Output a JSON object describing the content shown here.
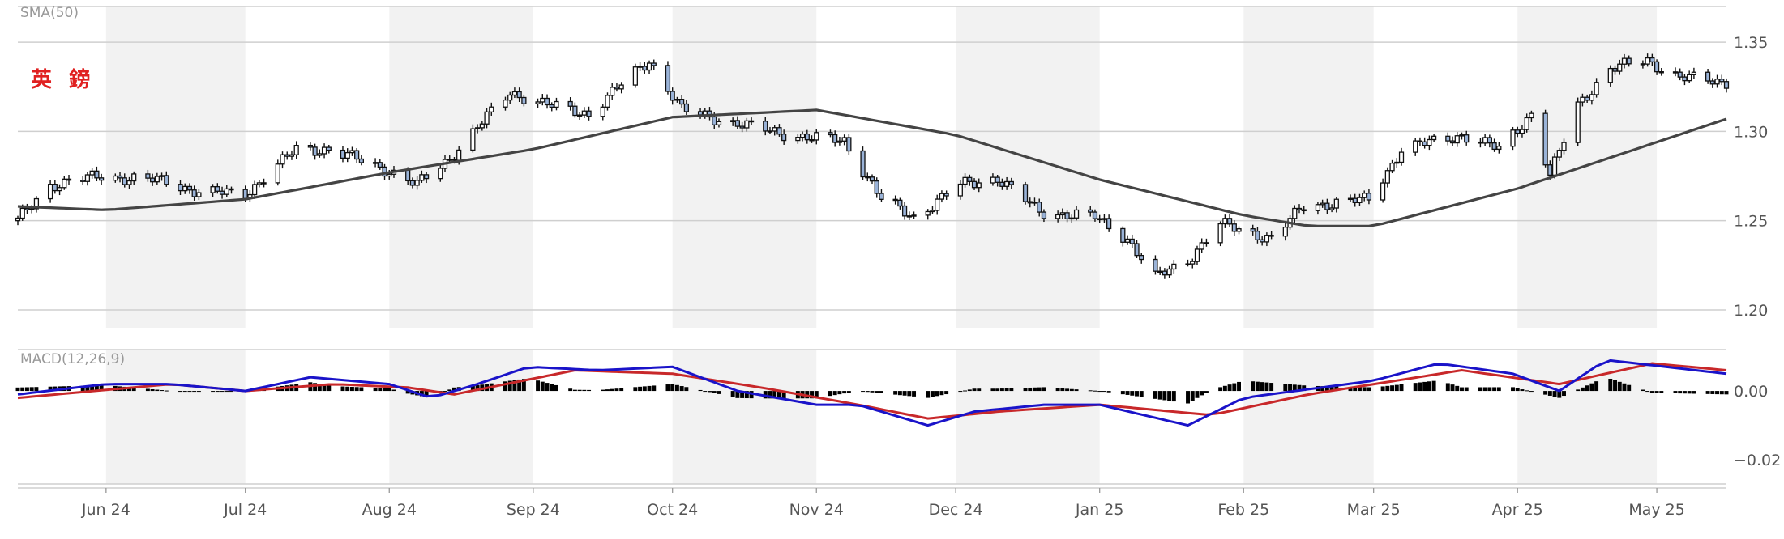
{
  "chart_data": [
    {
      "type": "candlestick",
      "title": "英 鎊",
      "indicator_label": "SMA(50)",
      "yticks": [
        "1.35",
        "1.30",
        "1.25",
        "1.20"
      ],
      "ylim": [
        1.19,
        1.37
      ],
      "xticks": [
        "Jun 24",
        "Jul 24",
        "Aug 24",
        "Sep 24",
        "Oct 24",
        "Nov 24",
        "Dec 24",
        "Jan 25",
        "Feb 25",
        "Mar 25",
        "Apr 25",
        "May 25"
      ],
      "x_range": [
        "2024-05-13",
        "2025-05-16"
      ],
      "close_anchors": [
        [
          "2024-05-13",
          1.25
        ],
        [
          "2024-05-20",
          1.27
        ],
        [
          "2024-05-31",
          1.275
        ],
        [
          "2024-06-14",
          1.272
        ],
        [
          "2024-06-21",
          1.266
        ],
        [
          "2024-07-01",
          1.265
        ],
        [
          "2024-07-12",
          1.29
        ],
        [
          "2024-07-19",
          1.29
        ],
        [
          "2024-08-01",
          1.278
        ],
        [
          "2024-08-07",
          1.27
        ],
        [
          "2024-08-14",
          1.285
        ],
        [
          "2024-08-21",
          1.305
        ],
        [
          "2024-08-27",
          1.322
        ],
        [
          "2024-09-05",
          1.314
        ],
        [
          "2024-09-13",
          1.31
        ],
        [
          "2024-09-26",
          1.34
        ],
        [
          "2024-10-03",
          1.312
        ],
        [
          "2024-10-17",
          1.303
        ],
        [
          "2024-10-31",
          1.296
        ],
        [
          "2024-11-07",
          1.295
        ],
        [
          "2024-11-15",
          1.262
        ],
        [
          "2024-11-22",
          1.252
        ],
        [
          "2024-12-02",
          1.27
        ],
        [
          "2024-12-10",
          1.274
        ],
        [
          "2024-12-19",
          1.255
        ],
        [
          "2024-12-31",
          1.252
        ],
        [
          "2025-01-07",
          1.24
        ],
        [
          "2025-01-13",
          1.218
        ],
        [
          "2025-01-20",
          1.228
        ],
        [
          "2025-01-27",
          1.248
        ],
        [
          "2025-02-07",
          1.24
        ],
        [
          "2025-02-14",
          1.258
        ],
        [
          "2025-02-28",
          1.262
        ],
        [
          "2025-03-07",
          1.29
        ],
        [
          "2025-03-20",
          1.298
        ],
        [
          "2025-03-28",
          1.29
        ],
        [
          "2025-04-04",
          1.31
        ],
        [
          "2025-04-08",
          1.275
        ],
        [
          "2025-04-14",
          1.315
        ],
        [
          "2025-04-21",
          1.335
        ],
        [
          "2025-04-29",
          1.34
        ],
        [
          "2025-05-06",
          1.33
        ],
        [
          "2025-05-16",
          1.328
        ]
      ],
      "sma50_anchors": [
        [
          "2024-05-13",
          1.258
        ],
        [
          "2024-06-01",
          1.256
        ],
        [
          "2024-07-01",
          1.262
        ],
        [
          "2024-08-01",
          1.277
        ],
        [
          "2024-09-01",
          1.29
        ],
        [
          "2024-10-01",
          1.308
        ],
        [
          "2024-11-01",
          1.312
        ],
        [
          "2024-12-01",
          1.298
        ],
        [
          "2025-01-01",
          1.273
        ],
        [
          "2025-02-01",
          1.253
        ],
        [
          "2025-02-15",
          1.247
        ],
        [
          "2025-03-01",
          1.247
        ],
        [
          "2025-04-01",
          1.268
        ],
        [
          "2025-05-16",
          1.307
        ]
      ]
    },
    {
      "type": "macd",
      "indicator_label": "MACD(12,26,9)",
      "yticks": [
        "0.00",
        "−0.02"
      ],
      "ylim": [
        -0.027,
        0.012
      ],
      "macd_anchors": [
        [
          "2024-05-13",
          -0.001
        ],
        [
          "2024-06-01",
          0.002
        ],
        [
          "2024-06-15",
          0.002
        ],
        [
          "2024-07-01",
          0.0
        ],
        [
          "2024-07-15",
          0.004
        ],
        [
          "2024-08-01",
          0.002
        ],
        [
          "2024-08-10",
          -0.002
        ],
        [
          "2024-08-20",
          0.002
        ],
        [
          "2024-08-31",
          0.007
        ],
        [
          "2024-09-15",
          0.006
        ],
        [
          "2024-10-01",
          0.007
        ],
        [
          "2024-10-15",
          0.0
        ],
        [
          "2024-11-01",
          -0.004
        ],
        [
          "2024-11-10",
          -0.004
        ],
        [
          "2024-11-25",
          -0.01
        ],
        [
          "2024-12-05",
          -0.006
        ],
        [
          "2024-12-20",
          -0.004
        ],
        [
          "2025-01-01",
          -0.004
        ],
        [
          "2025-01-20",
          -0.01
        ],
        [
          "2025-02-01",
          -0.002
        ],
        [
          "2025-03-01",
          0.003
        ],
        [
          "2025-03-15",
          0.008
        ],
        [
          "2025-03-31",
          0.005
        ],
        [
          "2025-04-10",
          0.0
        ],
        [
          "2025-04-20",
          0.009
        ],
        [
          "2025-05-16",
          0.005
        ]
      ],
      "signal_anchors": [
        [
          "2024-05-13",
          -0.002
        ],
        [
          "2024-06-15",
          0.002
        ],
        [
          "2024-07-01",
          0.0
        ],
        [
          "2024-07-20",
          0.002
        ],
        [
          "2024-08-05",
          0.001
        ],
        [
          "2024-08-15",
          -0.001
        ],
        [
          "2024-09-10",
          0.006
        ],
        [
          "2024-10-01",
          0.005
        ],
        [
          "2024-10-20",
          0.001
        ],
        [
          "2024-11-10",
          -0.004
        ],
        [
          "2024-11-25",
          -0.008
        ],
        [
          "2024-12-10",
          -0.006
        ],
        [
          "2025-01-01",
          -0.004
        ],
        [
          "2025-01-25",
          -0.007
        ],
        [
          "2025-02-15",
          -0.001
        ],
        [
          "2025-03-20",
          0.006
        ],
        [
          "2025-04-10",
          0.002
        ],
        [
          "2025-04-30",
          0.008
        ],
        [
          "2025-05-16",
          0.006
        ]
      ]
    }
  ],
  "colors": {
    "up_candle": "#ffffff",
    "down_candle": "#9ab3d8",
    "candle_edge": "#111111",
    "sma": "#444444",
    "macd": "#1a13c9",
    "signal": "#c8282a",
    "histogram": "#000000",
    "band": "#f2f2f2",
    "grid": "#cfcfcf"
  }
}
